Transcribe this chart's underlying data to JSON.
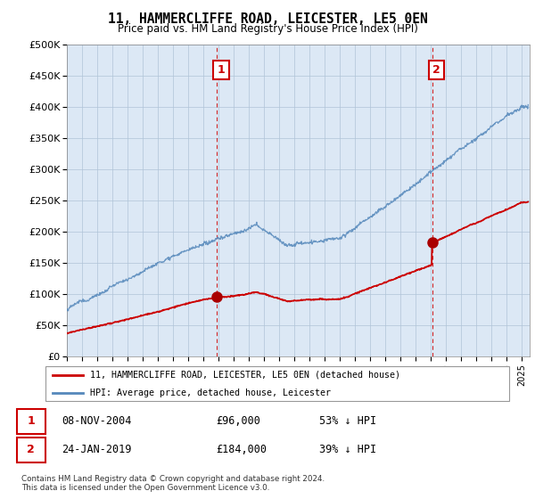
{
  "title": "11, HAMMERCLIFFE ROAD, LEICESTER, LE5 0EN",
  "subtitle": "Price paid vs. HM Land Registry's House Price Index (HPI)",
  "ylabel_ticks": [
    "£0",
    "£50K",
    "£100K",
    "£150K",
    "£200K",
    "£250K",
    "£300K",
    "£350K",
    "£400K",
    "£450K",
    "£500K"
  ],
  "ytick_values": [
    0,
    50000,
    100000,
    150000,
    200000,
    250000,
    300000,
    350000,
    400000,
    450000,
    500000
  ],
  "ylim": [
    0,
    500000
  ],
  "xlim_start": 1995.0,
  "xlim_end": 2025.5,
  "background_color": "#dce8f5",
  "grid_color": "#b0c4d8",
  "hpi_line_color": "#5588bb",
  "price_line_color": "#cc0000",
  "transaction1_price": 96000,
  "transaction1_year": 2004.86,
  "transaction2_price": 184000,
  "transaction2_year": 2019.07,
  "legend_entry1": "11, HAMMERCLIFFE ROAD, LEICESTER, LE5 0EN (detached house)",
  "legend_entry2": "HPI: Average price, detached house, Leicester",
  "footer1": "Contains HM Land Registry data © Crown copyright and database right 2024.",
  "footer2": "This data is licensed under the Open Government Licence v3.0.",
  "table_row1": [
    "1",
    "08-NOV-2004",
    "£96,000",
    "53% ↓ HPI"
  ],
  "table_row2": [
    "2",
    "24-JAN-2019",
    "£184,000",
    "39% ↓ HPI"
  ]
}
